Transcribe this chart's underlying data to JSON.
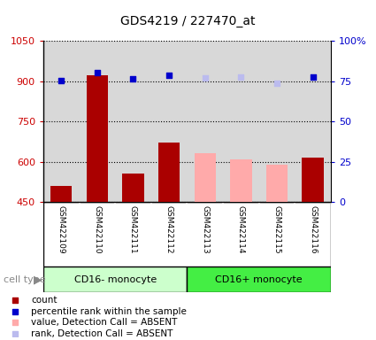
{
  "title": "GDS4219 / 227470_at",
  "samples": [
    "GSM422109",
    "GSM422110",
    "GSM422111",
    "GSM422112",
    "GSM422113",
    "GSM422114",
    "GSM422115",
    "GSM422116"
  ],
  "bar_values": [
    510,
    922,
    556,
    672,
    632,
    608,
    590,
    615
  ],
  "bar_colors": [
    "#aa0000",
    "#aa0000",
    "#aa0000",
    "#aa0000",
    "#ffaaaa",
    "#ffaaaa",
    "#ffaaaa",
    "#aa0000"
  ],
  "dot_values_pct": [
    75.5,
    80.5,
    76.5,
    78.5,
    77.0,
    77.5,
    74.0,
    77.5
  ],
  "dot_colors": [
    "#0000cc",
    "#0000cc",
    "#0000cc",
    "#0000cc",
    "#bbbbee",
    "#bbbbee",
    "#bbbbee",
    "#0000cc"
  ],
  "ylim_left": [
    450,
    1050
  ],
  "ylim_right": [
    0,
    100
  ],
  "yticks_left": [
    450,
    600,
    750,
    900,
    1050
  ],
  "yticks_right": [
    0,
    25,
    50,
    75,
    100
  ],
  "yticklabels_right": [
    "0",
    "25",
    "50",
    "75",
    "100%"
  ],
  "group1_label": "CD16- monocyte",
  "group2_label": "CD16+ monocyte",
  "group1_color": "#b3ffb3",
  "group2_color": "#33dd55",
  "cell_type_label": "cell type",
  "legend_items": [
    {
      "label": "count",
      "color": "#aa0000"
    },
    {
      "label": "percentile rank within the sample",
      "color": "#0000cc"
    },
    {
      "label": "value, Detection Call = ABSENT",
      "color": "#ffaaaa"
    },
    {
      "label": "rank, Detection Call = ABSENT",
      "color": "#bbbbee"
    }
  ],
  "bar_width": 0.6,
  "plot_bg_color": "#d8d8d8",
  "sample_bg_color": "#d8d8d8",
  "group1_bg": "#ccffcc",
  "group2_bg": "#44ee44"
}
